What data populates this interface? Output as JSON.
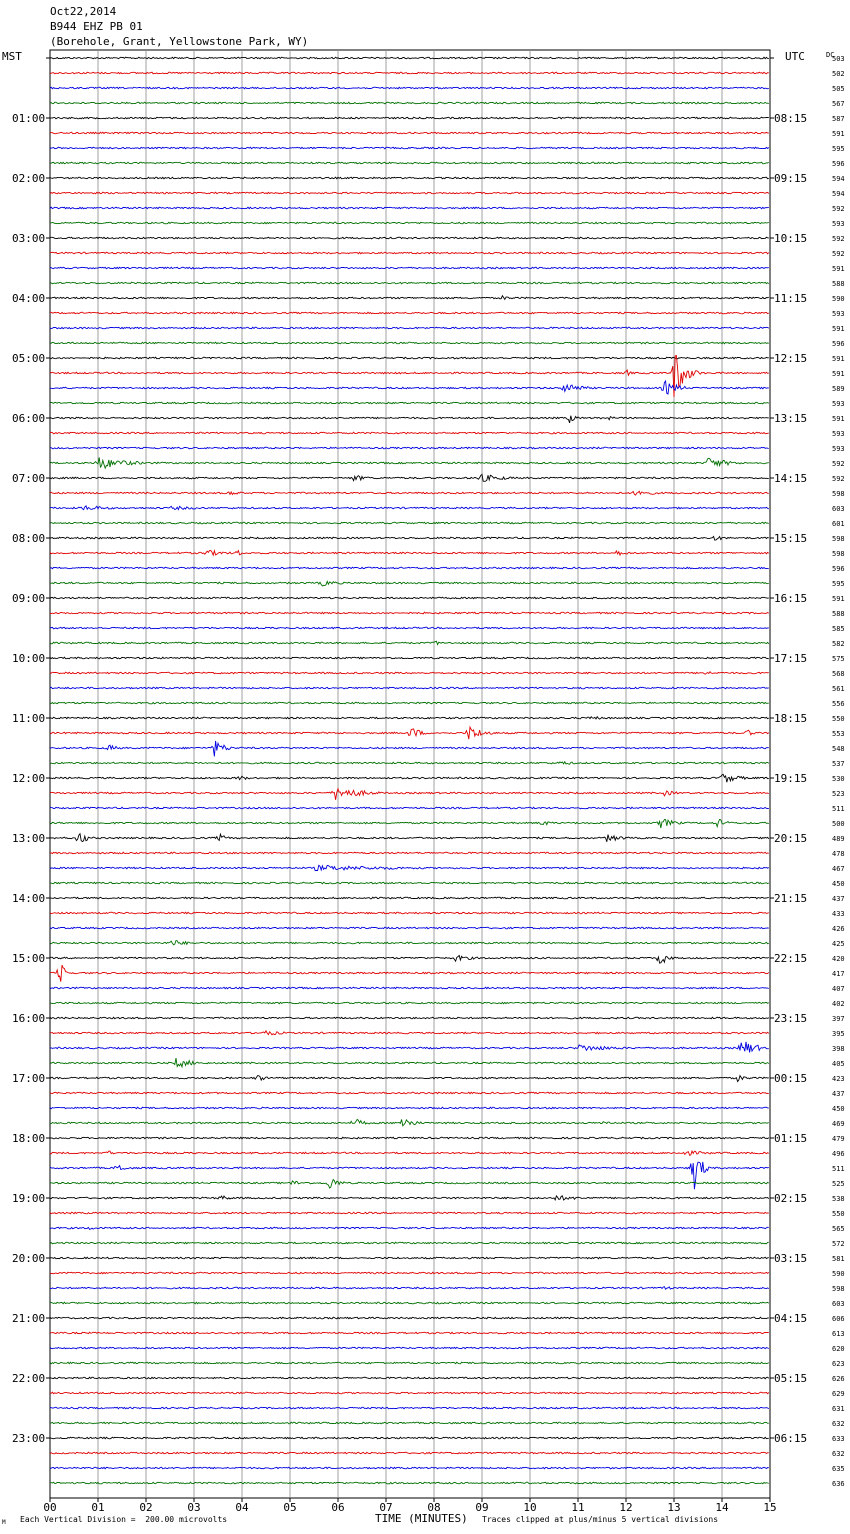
{
  "header": {
    "line1": "Oct22,2014",
    "line2": "B944 EHZ PB 01",
    "line3": "(Borehole, Grant, Yellowstone Park, WY)"
  },
  "left_axis_label": "MST",
  "right_axis_label": "UTC",
  "dc_label": "DC",
  "footer": {
    "scale_note": "Each Vertical Division =  200.00 microvolts",
    "clip_note": "Traces clipped at plus/minus 5 vertical divisions",
    "corner_mark": "M"
  },
  "chart_data": {
    "type": "line",
    "title": "",
    "xlabel": "TIME (MINUTES)",
    "ylabel": "",
    "xlim": [
      0,
      15
    ],
    "x_ticks": [
      "00",
      "01",
      "02",
      "03",
      "04",
      "05",
      "06",
      "07",
      "08",
      "09",
      "10",
      "11",
      "12",
      "13",
      "14",
      "15"
    ],
    "traces_per_hour": 4,
    "trace_colors": [
      "#000000",
      "#e00000",
      "#0000e0",
      "#007000"
    ],
    "grid": true,
    "left_hour_labels": [
      "",
      "01:00",
      "02:00",
      "03:00",
      "04:00",
      "05:00",
      "06:00",
      "07:00",
      "08:00",
      "09:00",
      "10:00",
      "11:00",
      "12:00",
      "13:00",
      "14:00",
      "15:00",
      "16:00",
      "17:00",
      "18:00",
      "19:00",
      "20:00",
      "21:00",
      "22:00",
      "23:00"
    ],
    "right_hour_labels": [
      "",
      "08:15",
      "09:15",
      "10:15",
      "11:15",
      "12:15",
      "13:15",
      "14:15",
      "15:15",
      "16:15",
      "17:15",
      "18:15",
      "19:15",
      "20:15",
      "21:15",
      "22:15",
      "23:15",
      "00:15",
      "01:15",
      "02:15",
      "03:15",
      "04:15",
      "05:15",
      "06:15"
    ],
    "dc_values": [
      "503",
      "502",
      "505",
      "567",
      "587",
      "591",
      "595",
      "596",
      "594",
      "594",
      "592",
      "593",
      "592",
      "592",
      "591",
      "588",
      "590",
      "593",
      "591",
      "596",
      "591",
      "591",
      "589",
      "593",
      "591",
      "593",
      "593",
      "592",
      "592",
      "598",
      "603",
      "601",
      "598",
      "598",
      "596",
      "595",
      "591",
      "588",
      "585",
      "582",
      "575",
      "568",
      "561",
      "556",
      "550",
      "553",
      "548",
      "537",
      "530",
      "523",
      "511",
      "500",
      "489",
      "478",
      "467",
      "450",
      "437",
      "433",
      "426",
      "425",
      "420",
      "417",
      "407",
      "402",
      "397",
      "395",
      "398",
      "405",
      "423",
      "437",
      "450",
      "469",
      "479",
      "496",
      "511",
      "525",
      "538",
      "550",
      "565",
      "572",
      "581",
      "590",
      "598",
      "603",
      "606",
      "613",
      "620",
      "623",
      "626",
      "629",
      "631",
      "632",
      "633",
      "632",
      "635",
      "636"
    ],
    "events": [
      {
        "trace": 16,
        "minute": 9.4,
        "dur": 0.6,
        "amp": 3
      },
      {
        "trace": 21,
        "minute": 12.0,
        "dur": 0.3,
        "amp": 4
      },
      {
        "trace": 21,
        "minute": 13.0,
        "dur": 0.6,
        "amp": 28
      },
      {
        "trace": 22,
        "minute": 10.7,
        "dur": 0.8,
        "amp": 8
      },
      {
        "trace": 22,
        "minute": 12.8,
        "dur": 0.8,
        "amp": 8
      },
      {
        "trace": 24,
        "minute": 10.8,
        "dur": 0.4,
        "amp": 6
      },
      {
        "trace": 24,
        "minute": 11.5,
        "dur": 0.8,
        "amp": 3
      },
      {
        "trace": 27,
        "minute": 1.0,
        "dur": 1.6,
        "amp": 7
      },
      {
        "trace": 27,
        "minute": 13.7,
        "dur": 1.2,
        "amp": 6
      },
      {
        "trace": 28,
        "minute": 6.3,
        "dur": 0.8,
        "amp": 4
      },
      {
        "trace": 28,
        "minute": 8.9,
        "dur": 1.4,
        "amp": 5
      },
      {
        "trace": 29,
        "minute": 3.7,
        "dur": 0.8,
        "amp": 3
      },
      {
        "trace": 29,
        "minute": 12.2,
        "dur": 0.8,
        "amp": 5
      },
      {
        "trace": 30,
        "minute": 0.7,
        "dur": 1.6,
        "amp": 3
      },
      {
        "trace": 30,
        "minute": 2.5,
        "dur": 2.5,
        "amp": 2
      },
      {
        "trace": 32,
        "minute": 13.8,
        "dur": 0.8,
        "amp": 3
      },
      {
        "trace": 33,
        "minute": 3.2,
        "dur": 1.2,
        "amp": 4
      },
      {
        "trace": 33,
        "minute": 3.9,
        "dur": 0.2,
        "amp": 6
      },
      {
        "trace": 33,
        "minute": 11.8,
        "dur": 0.8,
        "amp": 3
      },
      {
        "trace": 35,
        "minute": 5.6,
        "dur": 1.0,
        "amp": 4
      },
      {
        "trace": 39,
        "minute": 8.0,
        "dur": 0.3,
        "amp": 4
      },
      {
        "trace": 41,
        "minute": 13.6,
        "dur": 0.6,
        "amp": 3
      },
      {
        "trace": 44,
        "minute": 11.2,
        "dur": 0.8,
        "amp": 3
      },
      {
        "trace": 45,
        "minute": 7.5,
        "dur": 0.5,
        "amp": 9
      },
      {
        "trace": 45,
        "minute": 8.7,
        "dur": 0.8,
        "amp": 9
      },
      {
        "trace": 45,
        "minute": 14.5,
        "dur": 0.5,
        "amp": 4
      },
      {
        "trace": 46,
        "minute": 1.2,
        "dur": 0.6,
        "amp": 4
      },
      {
        "trace": 46,
        "minute": 3.4,
        "dur": 0.6,
        "amp": 10
      },
      {
        "trace": 47,
        "minute": 10.6,
        "dur": 0.8,
        "amp": 3
      },
      {
        "trace": 48,
        "minute": 3.9,
        "dur": 0.5,
        "amp": 4
      },
      {
        "trace": 48,
        "minute": 14.0,
        "dur": 0.9,
        "amp": 6
      },
      {
        "trace": 49,
        "minute": 5.9,
        "dur": 1.5,
        "amp": 8
      },
      {
        "trace": 49,
        "minute": 12.8,
        "dur": 0.8,
        "amp": 3
      },
      {
        "trace": 51,
        "minute": 12.7,
        "dur": 0.8,
        "amp": 6
      },
      {
        "trace": 51,
        "minute": 13.9,
        "dur": 0.6,
        "amp": 5
      },
      {
        "trace": 51,
        "minute": 10.2,
        "dur": 0.8,
        "amp": 3
      },
      {
        "trace": 52,
        "minute": 0.6,
        "dur": 0.4,
        "amp": 9
      },
      {
        "trace": 52,
        "minute": 3.5,
        "dur": 0.4,
        "amp": 6
      },
      {
        "trace": 52,
        "minute": 11.6,
        "dur": 1.0,
        "amp": 4
      },
      {
        "trace": 54,
        "minute": 5.5,
        "dur": 5.5,
        "amp": 3
      },
      {
        "trace": 59,
        "minute": 2.5,
        "dur": 1.0,
        "amp": 4
      },
      {
        "trace": 60,
        "minute": 8.4,
        "dur": 1.0,
        "amp": 4
      },
      {
        "trace": 60,
        "minute": 12.7,
        "dur": 0.4,
        "amp": 9
      },
      {
        "trace": 61,
        "minute": 0.2,
        "dur": 0.3,
        "amp": 14
      },
      {
        "trace": 65,
        "minute": 4.4,
        "dur": 1.4,
        "amp": 3
      },
      {
        "trace": 66,
        "minute": 11.0,
        "dur": 2.0,
        "amp": 4
      },
      {
        "trace": 66,
        "minute": 14.4,
        "dur": 0.8,
        "amp": 10
      },
      {
        "trace": 67,
        "minute": 2.6,
        "dur": 1.0,
        "amp": 6
      },
      {
        "trace": 68,
        "minute": 4.3,
        "dur": 0.4,
        "amp": 5
      },
      {
        "trace": 68,
        "minute": 14.3,
        "dur": 0.6,
        "amp": 4
      },
      {
        "trace": 71,
        "minute": 6.3,
        "dur": 0.6,
        "amp": 6
      },
      {
        "trace": 71,
        "minute": 7.3,
        "dur": 0.6,
        "amp": 9
      },
      {
        "trace": 71,
        "minute": 11.5,
        "dur": 0.4,
        "amp": 4
      },
      {
        "trace": 73,
        "minute": 1.2,
        "dur": 0.2,
        "amp": 5
      },
      {
        "trace": 73,
        "minute": 13.2,
        "dur": 1.4,
        "amp": 3
      },
      {
        "trace": 74,
        "minute": 1.4,
        "dur": 0.4,
        "amp": 6
      },
      {
        "trace": 74,
        "minute": 13.4,
        "dur": 0.4,
        "amp": 28
      },
      {
        "trace": 75,
        "minute": 5.8,
        "dur": 0.5,
        "amp": 9
      },
      {
        "trace": 75,
        "minute": 5.0,
        "dur": 1.0,
        "amp": 3
      },
      {
        "trace": 76,
        "minute": 3.5,
        "dur": 0.6,
        "amp": 4
      },
      {
        "trace": 76,
        "minute": 10.5,
        "dur": 1.6,
        "amp": 3
      },
      {
        "trace": 78,
        "minute": 0.8,
        "dur": 0.4,
        "amp": 3
      },
      {
        "trace": 82,
        "minute": 12.8,
        "dur": 0.4,
        "amp": 3
      }
    ]
  }
}
